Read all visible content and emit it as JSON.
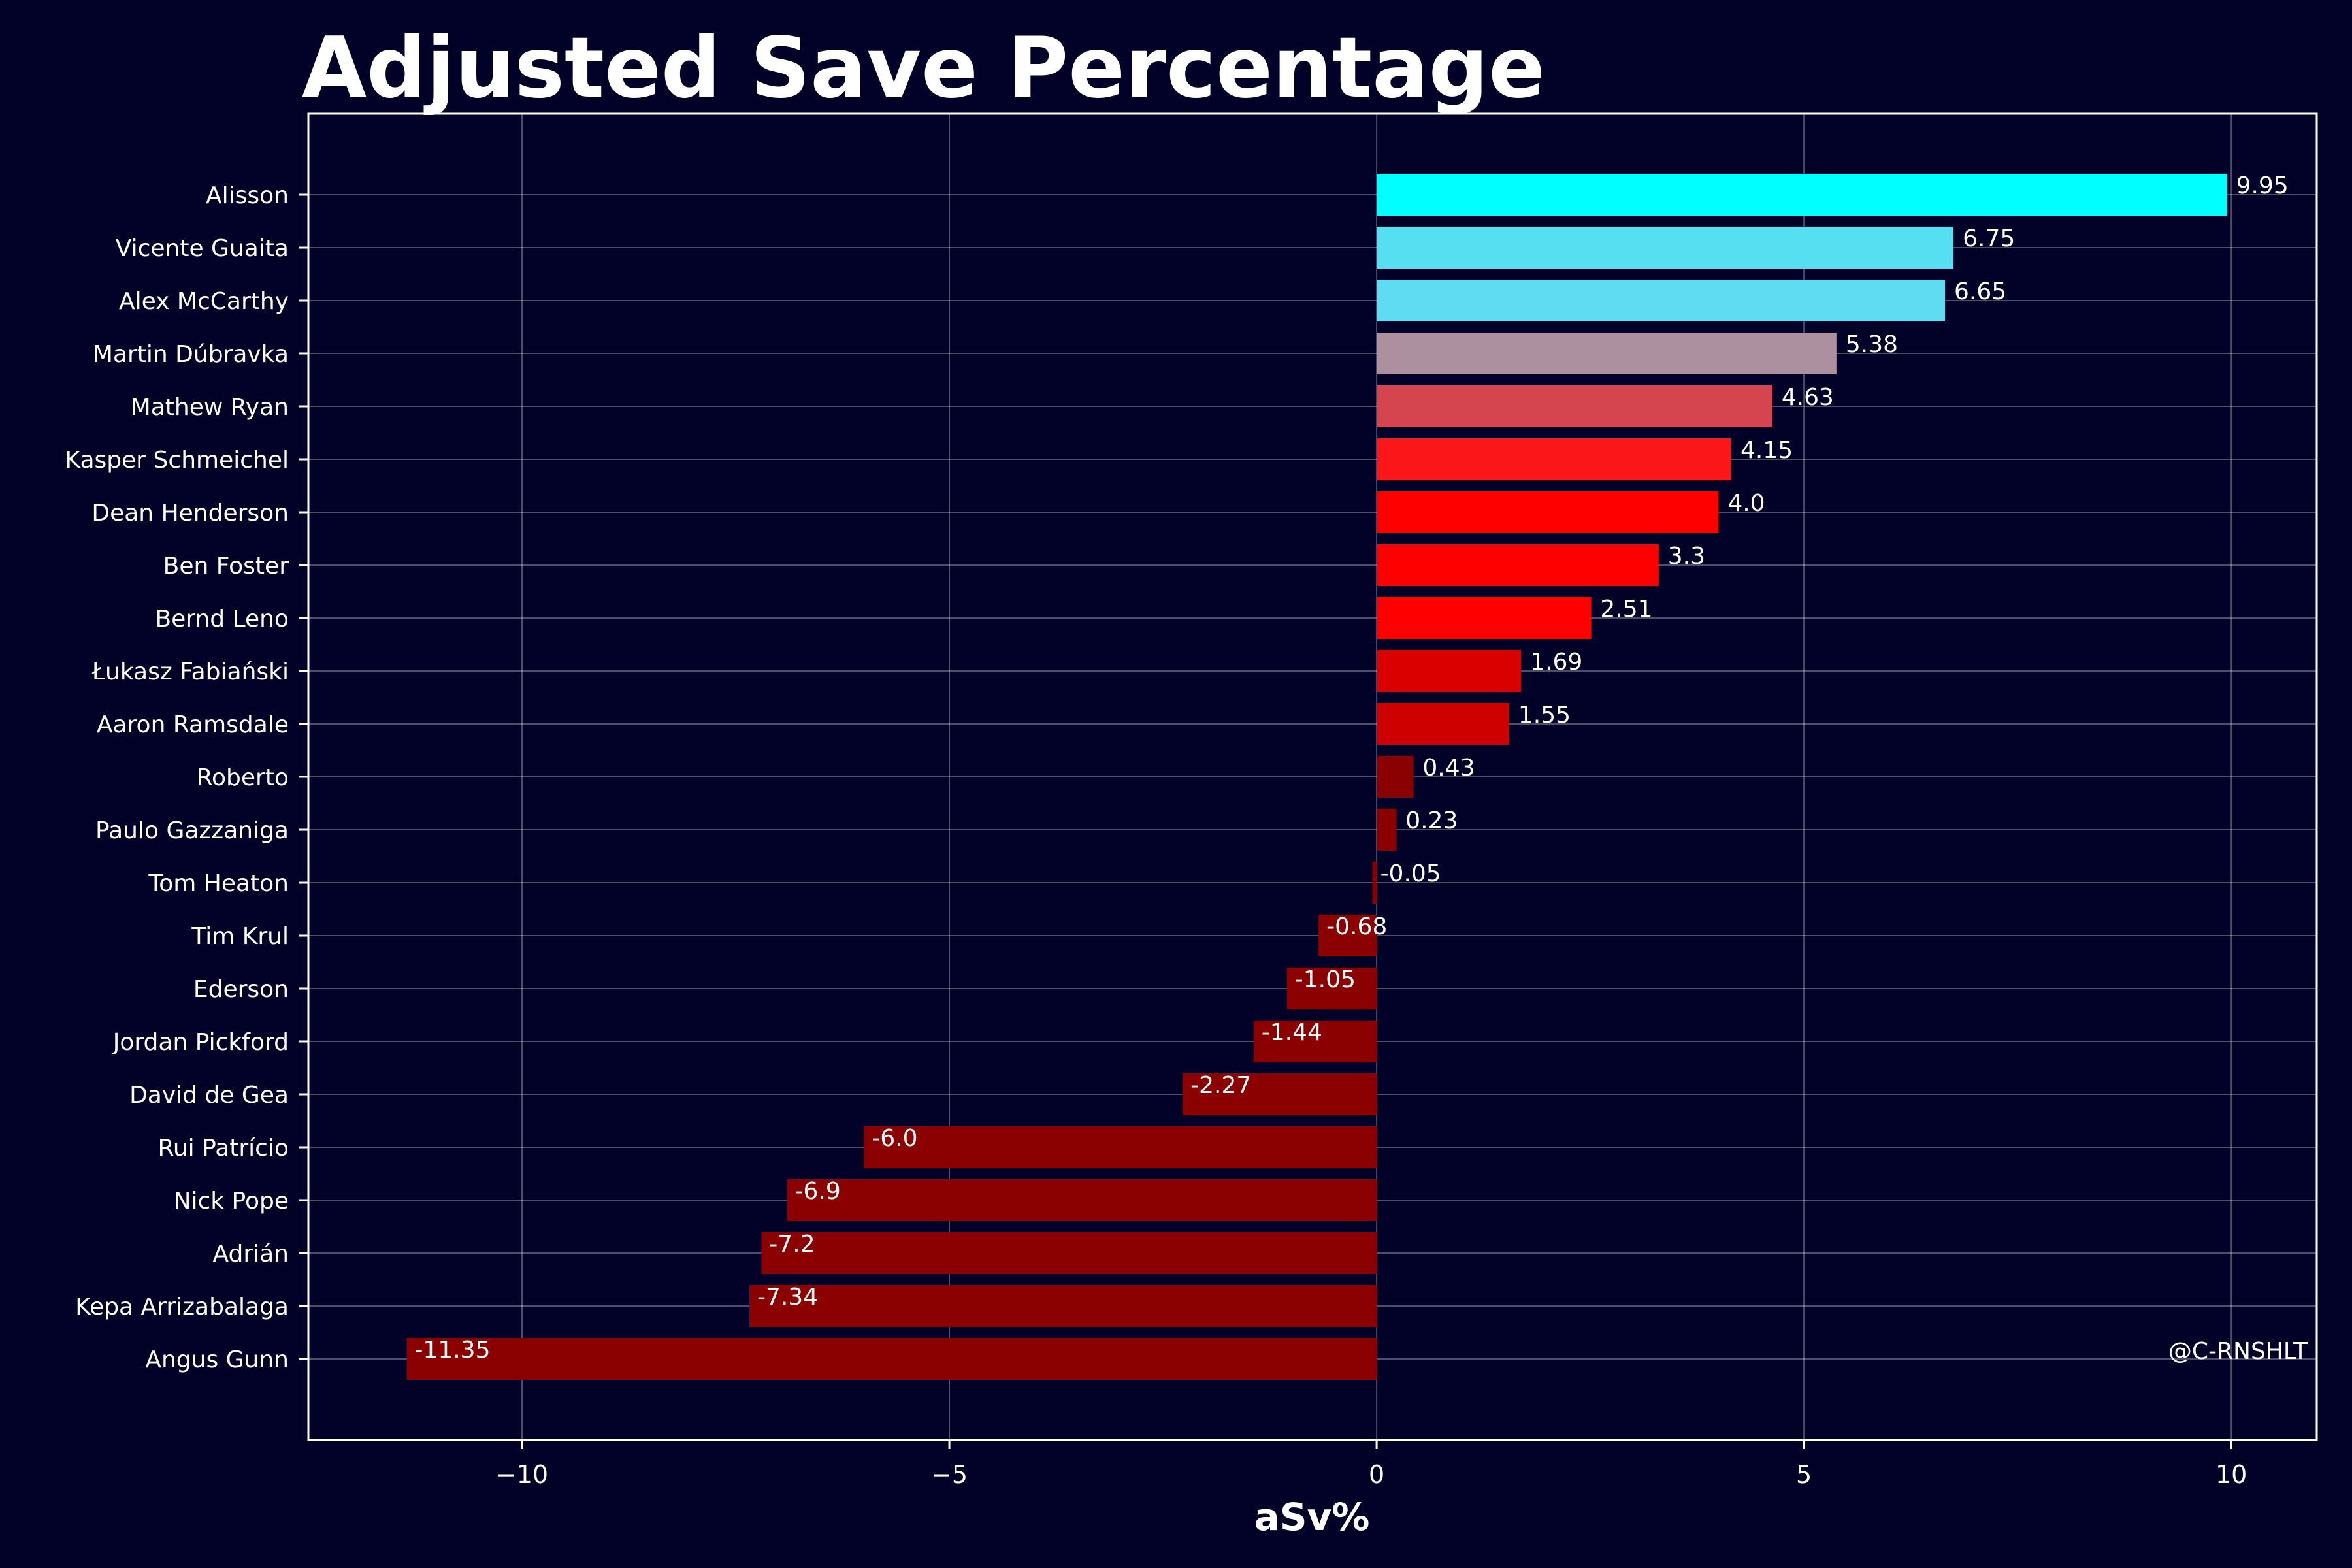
{
  "chart_data": {
    "type": "bar",
    "orientation": "horizontal",
    "title": "Adjusted Save Percentage",
    "xlabel": "aSv%",
    "ylabel": "",
    "xlim": [
      -12.5,
      11
    ],
    "xticks": [
      -10,
      -5,
      0,
      5,
      10
    ],
    "xtick_labels": [
      "−10",
      "−5",
      "0",
      "5",
      "10"
    ],
    "grid": true,
    "credit": "@C-RNSHLT",
    "categories": [
      "Alisson",
      "Vicente Guaita",
      "Alex McCarthy",
      "Martin Dúbravka",
      "Mathew Ryan",
      "Kasper Schmeichel",
      "Dean Henderson",
      "Ben Foster",
      "Bernd Leno",
      "Łukasz Fabiański",
      "Aaron Ramsdale",
      "Roberto",
      "Paulo Gazzaniga",
      "Tom Heaton",
      "Tim Krul",
      "Ederson",
      "Jordan Pickford",
      "David de Gea",
      "Rui Patrício",
      "Nick Pope",
      "Adrián",
      "Kepa Arrizabalaga",
      "Angus Gunn"
    ],
    "values": [
      9.95,
      6.75,
      6.65,
      5.38,
      4.63,
      4.15,
      4.0,
      3.3,
      2.51,
      1.69,
      1.55,
      0.43,
      0.23,
      -0.05,
      -0.68,
      -1.05,
      -1.44,
      -2.27,
      -6.0,
      -6.9,
      -7.2,
      -7.34,
      -11.35
    ],
    "value_labels": [
      "9.95",
      "6.75",
      "6.65",
      "5.38",
      "4.63",
      "4.15",
      "4.0",
      "3.3",
      "2.51",
      "1.69",
      "1.55",
      "0.43",
      "0.23",
      "-0.05",
      "-0.68",
      "-1.05",
      "-1.44",
      "-2.27",
      "-6.0",
      "-6.9",
      "-7.2",
      "-7.34",
      "-11.35"
    ],
    "colors": [
      "#00ffff",
      "#55dff1",
      "#5fdcf1",
      "#ac909f",
      "#d44550",
      "#fb1619",
      "#ff0000",
      "#ff0000",
      "#ff0000",
      "#da0000",
      "#cf0000",
      "#8b0000",
      "#8b0000",
      "#8b0000",
      "#8b0000",
      "#8b0000",
      "#8b0000",
      "#8b0000",
      "#8b0000",
      "#8b0000",
      "#8b0000",
      "#8b0000",
      "#8b0000"
    ],
    "background": "#020229",
    "text_color": "#ffffff",
    "axis_color": "#ffffff"
  }
}
